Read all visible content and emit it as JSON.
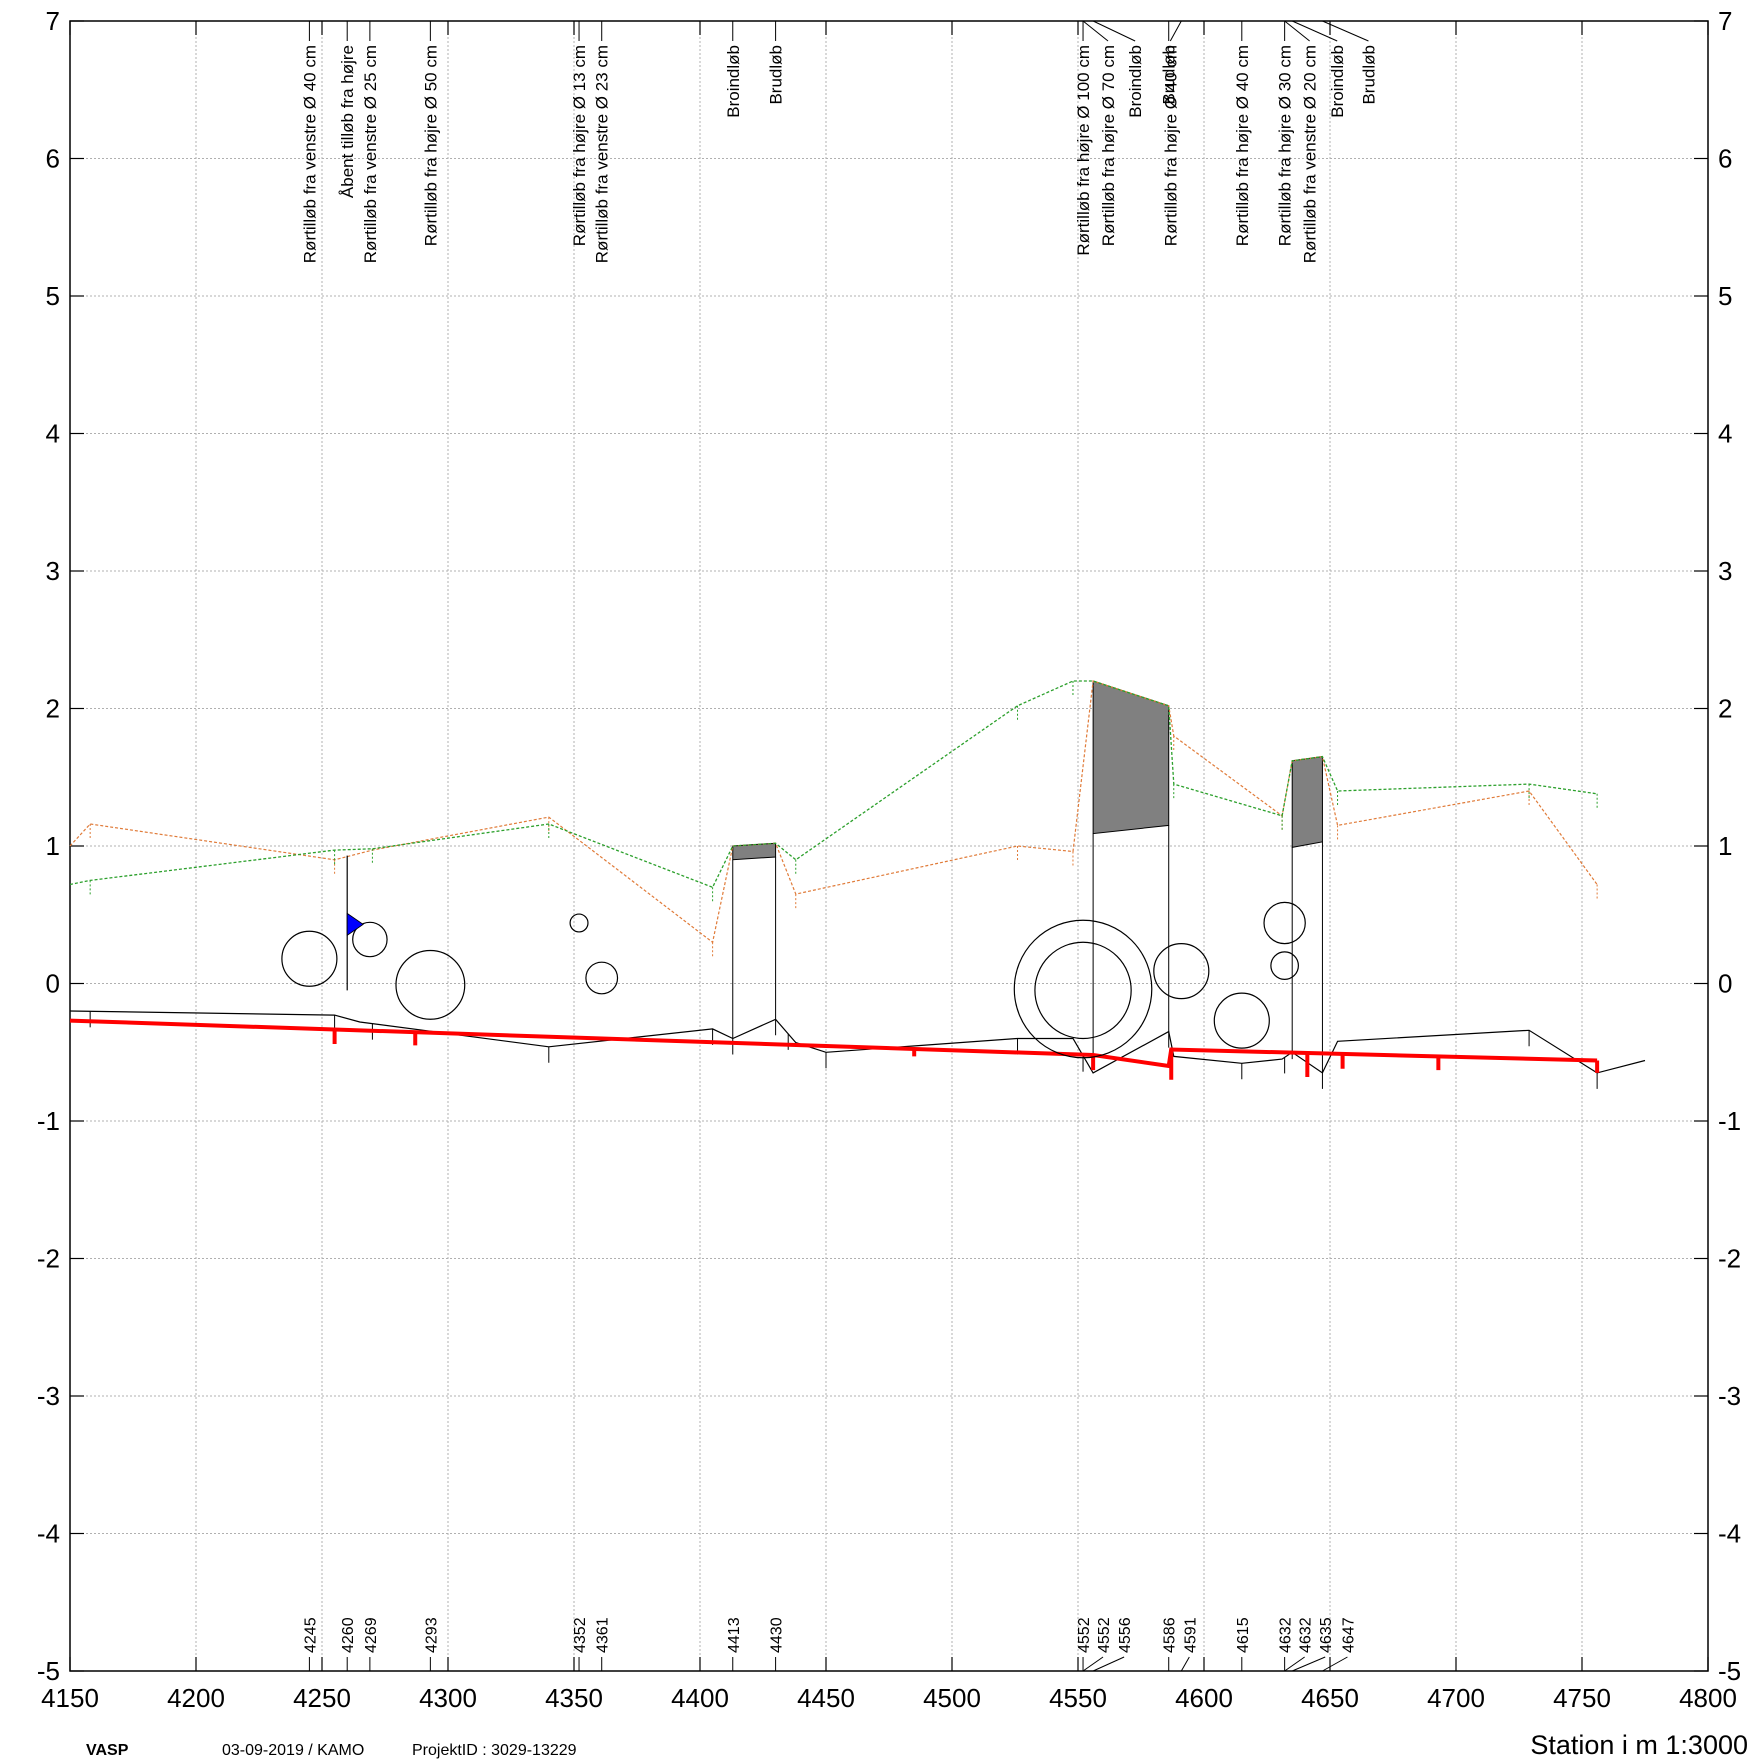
{
  "footer": {
    "program": "VASP",
    "date_user": "03-09-2019 / KAMO",
    "project": "ProjektID  : 3029-13229",
    "scale_label": "Station i m  1:3000"
  },
  "chart_data": {
    "type": "line",
    "xlim": [
      4150,
      4800
    ],
    "ylim": [
      -5,
      7
    ],
    "x_ticks": [
      4150,
      4200,
      4250,
      4300,
      4350,
      4400,
      4450,
      4500,
      4550,
      4600,
      4650,
      4700,
      4750,
      4800
    ],
    "y_ticks": [
      7,
      6,
      5,
      4,
      3,
      2,
      1,
      0,
      -1,
      -2,
      -3,
      -4,
      -5
    ],
    "grid": true,
    "colors": {
      "terrain_right": "#2ca02c",
      "terrain_left": "#e07b39",
      "bottom": "#000000",
      "regulation": "#ff0000",
      "culvert_fill": "#808080",
      "water_marker": "#0000ff"
    },
    "series": [
      {
        "key": "right_bank",
        "points": [
          [
            4150,
            0.72
          ],
          [
            4158,
            0.75
          ],
          [
            4255,
            0.97
          ],
          [
            4270,
            0.98
          ],
          [
            4340,
            1.16
          ],
          [
            4405,
            0.7
          ],
          [
            4413,
            1.0
          ],
          [
            4430,
            1.02
          ],
          [
            4438,
            0.9
          ],
          [
            4526,
            2.02
          ],
          [
            4548,
            2.2
          ],
          [
            4556,
            2.2
          ],
          [
            4586,
            2.02
          ],
          [
            4588,
            1.45
          ],
          [
            4631,
            1.22
          ],
          [
            4635,
            1.62
          ],
          [
            4647,
            1.65
          ],
          [
            4653,
            1.4
          ],
          [
            4729,
            1.45
          ],
          [
            4756,
            1.38
          ]
        ]
      },
      {
        "key": "left_bank",
        "points": [
          [
            4150,
            1.0
          ],
          [
            4158,
            1.16
          ],
          [
            4255,
            0.9
          ],
          [
            4270,
            0.97
          ],
          [
            4340,
            1.21
          ],
          [
            4405,
            0.3
          ],
          [
            4413,
            1.0
          ],
          [
            4430,
            1.02
          ],
          [
            4438,
            0.65
          ],
          [
            4526,
            1.0
          ],
          [
            4548,
            0.96
          ],
          [
            4556,
            2.2
          ],
          [
            4586,
            2.02
          ],
          [
            4588,
            1.8
          ],
          [
            4631,
            1.22
          ],
          [
            4635,
            1.62
          ],
          [
            4647,
            1.65
          ],
          [
            4653,
            1.15
          ],
          [
            4729,
            1.4
          ],
          [
            4756,
            0.72
          ]
        ]
      },
      {
        "key": "bottom",
        "points": [
          [
            4150,
            -0.2
          ],
          [
            4255,
            -0.23
          ],
          [
            4265,
            -0.28
          ],
          [
            4340,
            -0.46
          ],
          [
            4405,
            -0.33
          ],
          [
            4413,
            -0.4
          ],
          [
            4430,
            -0.26
          ],
          [
            4438,
            -0.43
          ],
          [
            4450,
            -0.5
          ],
          [
            4526,
            -0.4
          ],
          [
            4548,
            -0.4
          ],
          [
            4556,
            -0.65
          ],
          [
            4586,
            -0.35
          ],
          [
            4588,
            -0.53
          ],
          [
            4615,
            -0.58
          ],
          [
            4631,
            -0.55
          ],
          [
            4635,
            -0.5
          ],
          [
            4647,
            -0.65
          ],
          [
            4653,
            -0.42
          ],
          [
            4729,
            -0.34
          ],
          [
            4756,
            -0.65
          ],
          [
            4775,
            -0.56
          ]
        ]
      },
      {
        "key": "regulation",
        "points": [
          [
            4150,
            -0.27
          ],
          [
            4556,
            -0.52
          ],
          [
            4586,
            -0.6
          ],
          [
            4587,
            -0.48
          ],
          [
            4756,
            -0.56
          ]
        ]
      }
    ],
    "regulation_ticks": [
      [
        4255,
        -0.44
      ],
      [
        4287,
        -0.45
      ],
      [
        4485,
        -0.53
      ],
      [
        4556,
        -0.63
      ],
      [
        4587,
        -0.7
      ],
      [
        4641,
        -0.68
      ],
      [
        4655,
        -0.62
      ],
      [
        4693,
        -0.63
      ],
      [
        4756,
        -0.65
      ]
    ],
    "bank_ticks_right": [
      4158,
      4255,
      4270,
      4340,
      4405,
      4438,
      4526,
      4548,
      4588,
      4631,
      4653,
      4729,
      4756
    ],
    "bank_ticks_left": [
      4158,
      4255,
      4340,
      4405,
      4438,
      4526,
      4548,
      4588,
      4631,
      4653,
      4729,
      4756
    ],
    "bottom_ticks": [
      4158,
      4255,
      4270,
      4340,
      4405,
      4413,
      4430,
      4435,
      4450,
      4526,
      4552,
      4586,
      4615,
      4632,
      4647,
      4729,
      4756
    ],
    "culverts": [
      {
        "x_in": 4413,
        "x_out": 4430,
        "top_in": 1.0,
        "top_out": 1.02,
        "soffit_in": 0.9,
        "soffit_out": 0.92,
        "invert_in": -0.4,
        "invert_out": -0.26
      },
      {
        "x_in": 4556,
        "x_out": 4586,
        "top_in": 2.2,
        "top_out": 2.02,
        "soffit_in": 1.09,
        "soffit_out": 1.15,
        "invert_in": -0.55,
        "invert_out": -0.35
      },
      {
        "x_in": 4635,
        "x_out": 4647,
        "top_in": 1.62,
        "top_out": 1.65,
        "soffit_in": 0.99,
        "soffit_out": 1.03,
        "invert_in": -0.55,
        "invert_out": -0.65
      }
    ],
    "pipes": [
      {
        "x": 4245,
        "y": 0.18,
        "d": 0.4
      },
      {
        "x": 4269,
        "y": 0.32,
        "d": 0.25
      },
      {
        "x": 4293,
        "y": -0.01,
        "d": 0.5
      },
      {
        "x": 4352,
        "y": 0.44,
        "d": 0.13
      },
      {
        "x": 4361,
        "y": 0.04,
        "d": 0.23
      },
      {
        "x": 4552,
        "y": -0.04,
        "d": 1.0
      },
      {
        "x": 4552,
        "y": -0.05,
        "d": 0.7
      },
      {
        "x": 4591,
        "y": 0.09,
        "d": 0.4
      },
      {
        "x": 4615,
        "y": -0.27,
        "d": 0.4
      },
      {
        "x": 4632,
        "y": 0.44,
        "d": 0.3
      },
      {
        "x": 4632,
        "y": 0.13,
        "d": 0.2
      }
    ],
    "open_inlet": {
      "x": 4260,
      "y_top": 0.93,
      "y_bottom": -0.05
    },
    "water_marker": {
      "x": 4260,
      "y": 0.43
    },
    "feature_labels": [
      {
        "x": 4245,
        "text": "Rørtilløb fra venstre Ø 40 cm",
        "offset": 0
      },
      {
        "x": 4260,
        "text": "Åbent tilløb fra højre",
        "offset": 0
      },
      {
        "x": 4269,
        "text": "Rørtilløb fra venstre Ø 25 cm",
        "offset": 0
      },
      {
        "x": 4293,
        "text": "Rørtilløb fra højre Ø 50 cm",
        "offset": 0
      },
      {
        "x": 4352,
        "text": "Rørtilløb fra højre Ø 13 cm",
        "offset": 0
      },
      {
        "x": 4361,
        "text": "Rørtilløb fra venstre Ø 23 cm",
        "offset": 0
      },
      {
        "x": 4413,
        "text": "Broindløb",
        "offset": 0
      },
      {
        "x": 4430,
        "text": "Brudløb",
        "offset": 0
      },
      {
        "x": 4552,
        "text": "Rørtilløb fra højre Ø 100 cm",
        "offset": 0
      },
      {
        "x": 4552,
        "text": "Rørtilløb fra højre Ø 70 cm",
        "offset": 25
      },
      {
        "x": 4556,
        "text": "Broindløb",
        "offset": 42
      },
      {
        "x": 4586,
        "text": "Brudløb",
        "offset": 0
      },
      {
        "x": 4591,
        "text": "Rørtilløb fra højre Ø 40 cm",
        "offset": -11
      },
      {
        "x": 4615,
        "text": "Rørtilløb fra højre Ø 40 cm",
        "offset": 0
      },
      {
        "x": 4632,
        "text": "Rørtilløb fra højre Ø 30 cm",
        "offset": 0
      },
      {
        "x": 4632,
        "text": "Rørtilløb fra venstre Ø 20 cm",
        "offset": 25
      },
      {
        "x": 4635,
        "text": "Broindløb",
        "offset": 45
      },
      {
        "x": 4647,
        "text": "Brudløb",
        "offset": 46
      }
    ],
    "station_labels": [
      {
        "x": 4245,
        "text": "4245",
        "offset": 0
      },
      {
        "x": 4260,
        "text": "4260",
        "offset": 0
      },
      {
        "x": 4269,
        "text": "4269",
        "offset": 0
      },
      {
        "x": 4293,
        "text": "4293",
        "offset": 0
      },
      {
        "x": 4352,
        "text": "4352",
        "offset": 0
      },
      {
        "x": 4361,
        "text": "4361",
        "offset": 0
      },
      {
        "x": 4413,
        "text": "4413",
        "offset": 0
      },
      {
        "x": 4430,
        "text": "4430",
        "offset": 0
      },
      {
        "x": 4552,
        "text": "4552",
        "offset": 0
      },
      {
        "x": 4552,
        "text": "4552",
        "offset": 20
      },
      {
        "x": 4556,
        "text": "4556",
        "offset": 31
      },
      {
        "x": 4586,
        "text": "4586",
        "offset": 0
      },
      {
        "x": 4591,
        "text": "4591",
        "offset": 8
      },
      {
        "x": 4615,
        "text": "4615",
        "offset": 0
      },
      {
        "x": 4632,
        "text": "4632",
        "offset": 0
      },
      {
        "x": 4632,
        "text": "4632",
        "offset": 20
      },
      {
        "x": 4635,
        "text": "4635",
        "offset": 33
      },
      {
        "x": 4647,
        "text": "4647",
        "offset": 25
      }
    ]
  }
}
